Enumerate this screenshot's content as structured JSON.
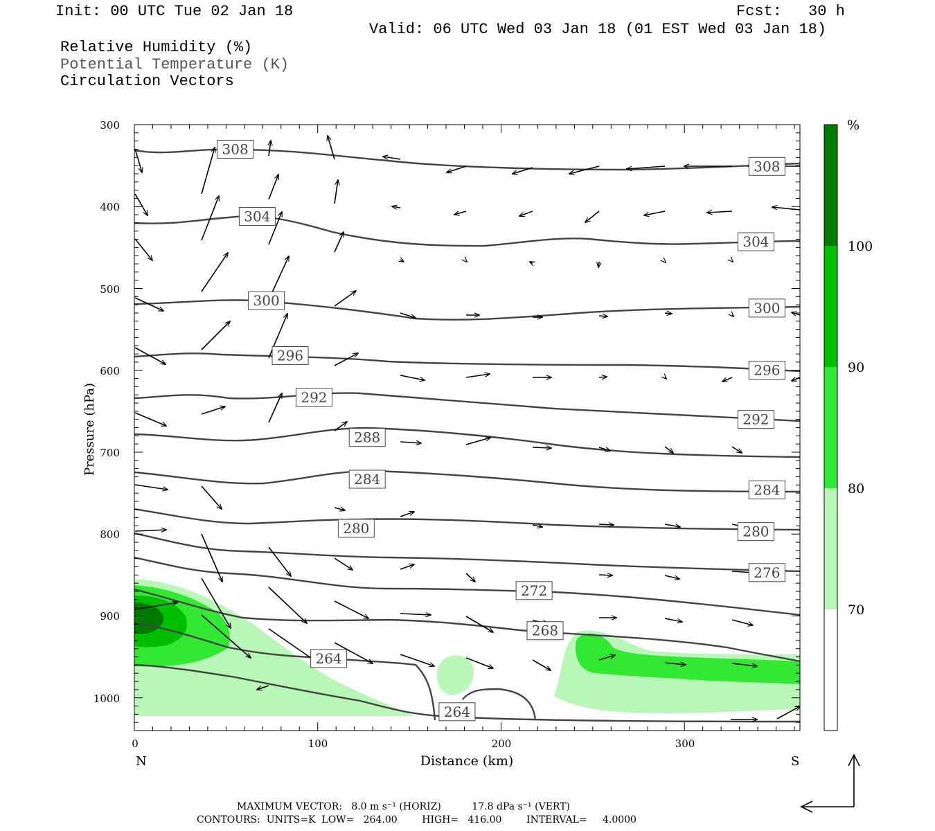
{
  "header": {
    "init": "Init: 00 UTC Tue 02 Jan 18",
    "fcst_label": "Fcst:",
    "fcst_value": "30 h",
    "valid": "Valid: 06 UTC Wed 03 Jan 18 (01 EST Wed 03 Jan 18)"
  },
  "fields": [
    "Relative Humidity (%)",
    "Potential Temperature (K)",
    "Circulation Vectors"
  ],
  "colors": {
    "rh70": "#b8f7b8",
    "rh80": "#32e832",
    "rh90": "#00be00",
    "rh100": "#007a00",
    "contour": "#444444"
  },
  "chart_data": {
    "type": "cross-section",
    "xlabel": "Distance (km)",
    "ylabel": "Pressure (hPa)",
    "xlim": [
      0,
      363
    ],
    "ylim": [
      300,
      1040
    ],
    "x_ticks": [
      "0",
      "100",
      "200",
      "300"
    ],
    "y_ticks": [
      "300",
      "400",
      "500",
      "600",
      "700",
      "800",
      "900",
      "1000"
    ],
    "left_end_label": "N",
    "right_end_label": "S",
    "colorbar": {
      "unit": "%",
      "levels": [
        "70",
        "80",
        "90",
        "100"
      ]
    },
    "isentrope_labels": [
      {
        "text": "308",
        "x": 55,
        "p": 330
      },
      {
        "text": "308",
        "x": 345,
        "p": 351
      },
      {
        "text": "304",
        "x": 67,
        "p": 412
      },
      {
        "text": "304",
        "x": 339,
        "p": 443
      },
      {
        "text": "300",
        "x": 72,
        "p": 515
      },
      {
        "text": "300",
        "x": 345,
        "p": 524
      },
      {
        "text": "296",
        "x": 85,
        "p": 582
      },
      {
        "text": "296",
        "x": 345,
        "p": 600
      },
      {
        "text": "292",
        "x": 98,
        "p": 633
      },
      {
        "text": "292",
        "x": 339,
        "p": 660
      },
      {
        "text": "288",
        "x": 127,
        "p": 682
      },
      {
        "text": "284",
        "x": 127,
        "p": 733
      },
      {
        "text": "284",
        "x": 345,
        "p": 746
      },
      {
        "text": "280",
        "x": 121,
        "p": 793
      },
      {
        "text": "280",
        "x": 339,
        "p": 797
      },
      {
        "text": "276",
        "x": 345,
        "p": 847
      },
      {
        "text": "272",
        "x": 218,
        "p": 869
      },
      {
        "text": "268",
        "x": 224,
        "p": 918
      },
      {
        "text": "264",
        "x": 106,
        "p": 952
      },
      {
        "text": "264",
        "x": 176,
        "p": 1017
      }
    ]
  },
  "footer": {
    "max_vector": "MAXIMUM VECTOR:   8.0 m s⁻¹ (HORIZ)          17.8 dPa s⁻¹ (VERT)",
    "contours": "CONTOURS:  UNITS=K  LOW=   264.00        HIGH=   416.00        INTERVAL=     4.0000"
  }
}
